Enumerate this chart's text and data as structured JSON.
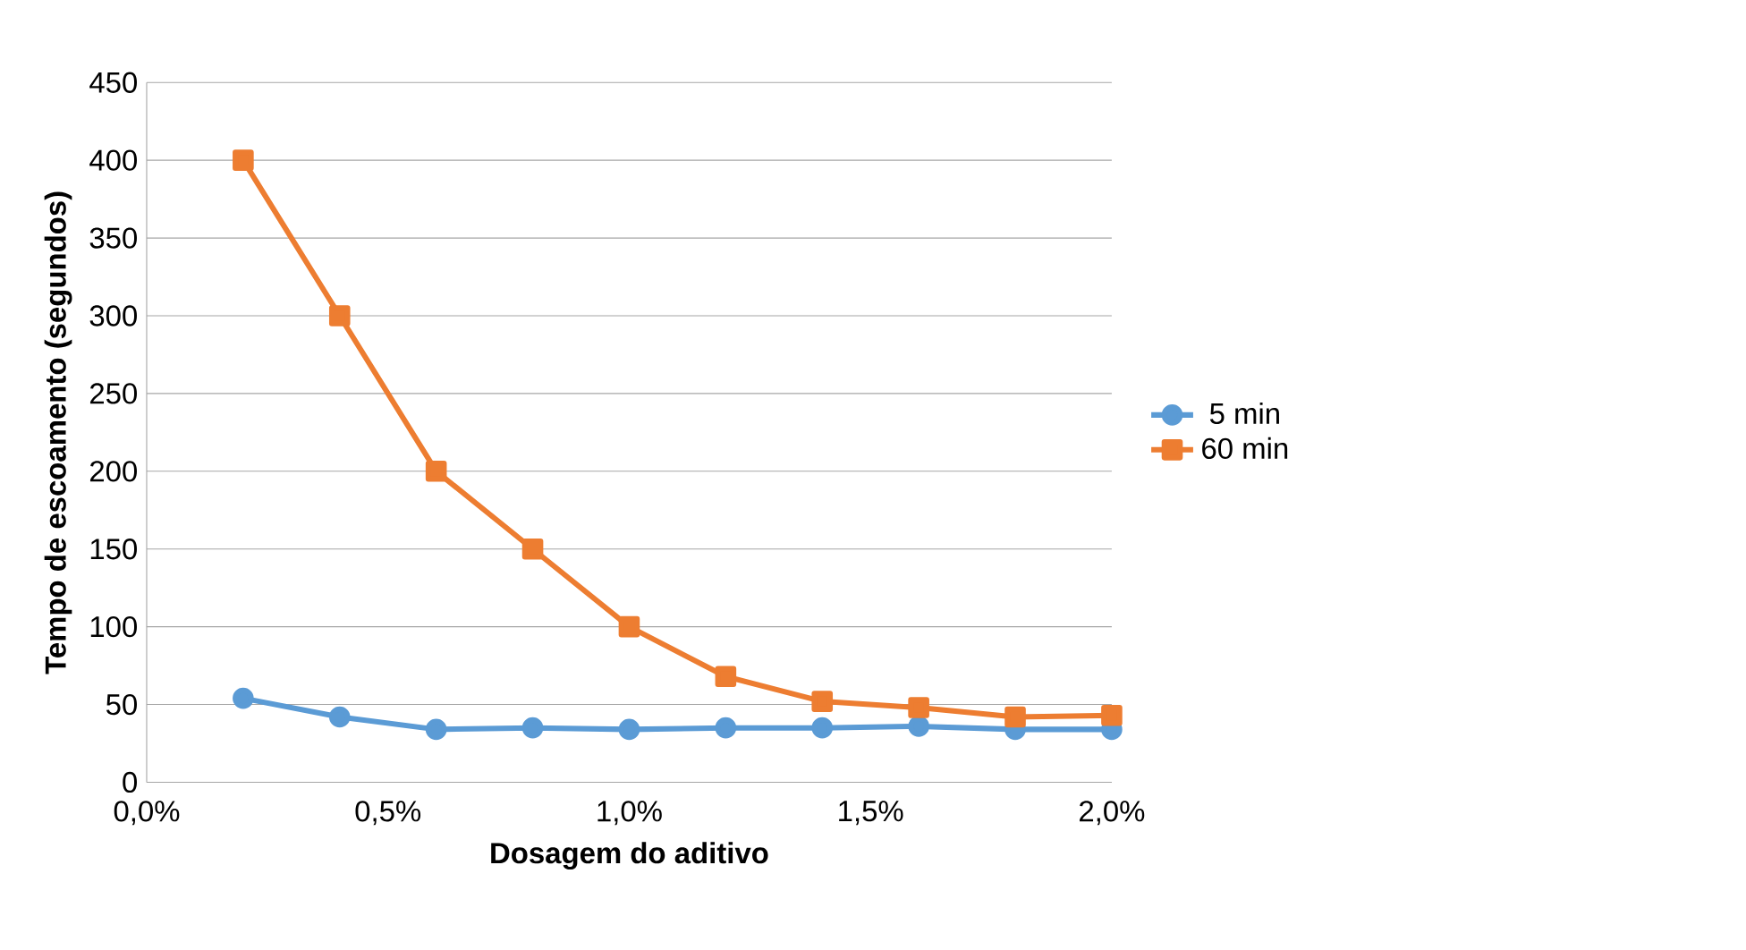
{
  "chart_data": {
    "type": "line",
    "xlabel": "Dosagem do aditivo",
    "ylabel": "Tempo de escoamento (segundos)",
    "x": [
      0.2,
      0.4,
      0.6,
      0.8,
      1.0,
      1.2,
      1.4,
      1.6,
      1.8,
      2.0
    ],
    "series": [
      {
        "name": "5 min",
        "color": "#5b9bd5",
        "marker": "circle",
        "values": [
          54,
          42,
          34,
          35,
          34,
          35,
          35,
          36,
          34,
          34
        ]
      },
      {
        "name": "60 min",
        "color": "#ed7d31",
        "marker": "square",
        "values": [
          400,
          300,
          200,
          150,
          100,
          68,
          52,
          48,
          42,
          43
        ]
      }
    ],
    "xlim": [
      0,
      2.0
    ],
    "ylim": [
      0,
      450
    ],
    "xticks": [
      {
        "value": 0,
        "label": "0,0%"
      },
      {
        "value": 0.5,
        "label": "0,5%"
      },
      {
        "value": 1.0,
        "label": "1,0%"
      },
      {
        "value": 1.5,
        "label": "1,5%"
      },
      {
        "value": 2.0,
        "label": "2,0%"
      }
    ],
    "yticks": [
      0,
      50,
      100,
      150,
      200,
      250,
      300,
      350,
      400,
      450
    ],
    "grid": "y",
    "legend": "right",
    "line_style": "solid"
  }
}
